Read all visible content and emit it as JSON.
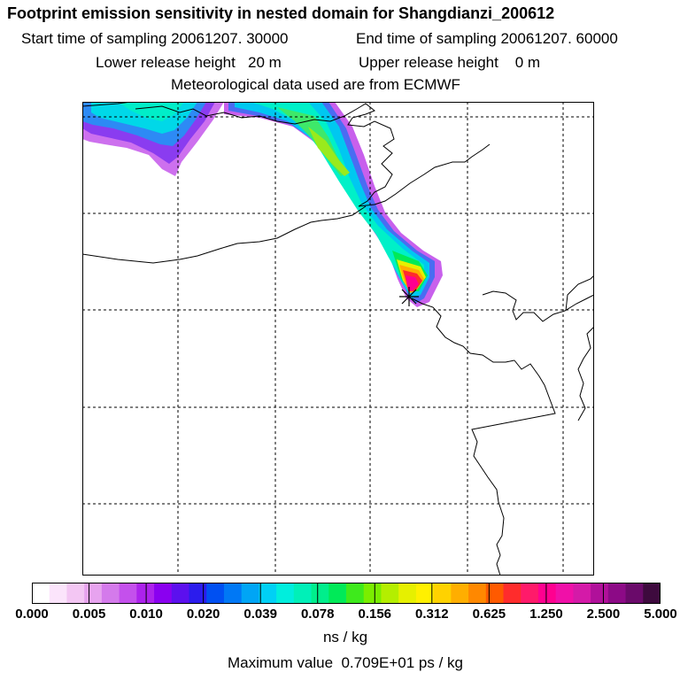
{
  "header": {
    "title": "Footprint emission sensitivity in nested domain for Shangdianzi_200612",
    "start_label": "Start time of sampling 20061207. 30000",
    "end_label": "End time of sampling 20061207. 60000",
    "lower_label": "Lower release height   20 m",
    "upper_label": "Upper release height    0 m",
    "met_label": "Meteorological data used are from ECMWF"
  },
  "colorbar": {
    "colors": [
      "#ffffff",
      "#fbe4fb",
      "#f3c6f3",
      "#e7a3ef",
      "#d47aeb",
      "#c450ec",
      "#ac22ec",
      "#8a00f0",
      "#5c10ee",
      "#2b1ced",
      "#0050f2",
      "#0078f5",
      "#00a5f5",
      "#00d0f5",
      "#00eedd",
      "#00f0b8",
      "#00ee8c",
      "#00ea58",
      "#3eea1c",
      "#7aee00",
      "#b4ee00",
      "#e6f000",
      "#fff000",
      "#ffd200",
      "#ffae00",
      "#ff8800",
      "#ff5a00",
      "#ff2c2c",
      "#ff1a6a",
      "#ff0090",
      "#f010a8",
      "#d41aa8",
      "#b0109a",
      "#8c0a86",
      "#6a0a6a",
      "#3e0a3e"
    ],
    "ticks": [
      "0.000",
      "0.005",
      "0.010",
      "0.020",
      "0.039",
      "0.078",
      "0.156",
      "0.312",
      "0.625",
      "1.250",
      "2.500",
      "5.000"
    ],
    "units": "ns / kg"
  },
  "footer": {
    "max_value": "Maximum value  0.709E+01 ps / kg"
  }
}
